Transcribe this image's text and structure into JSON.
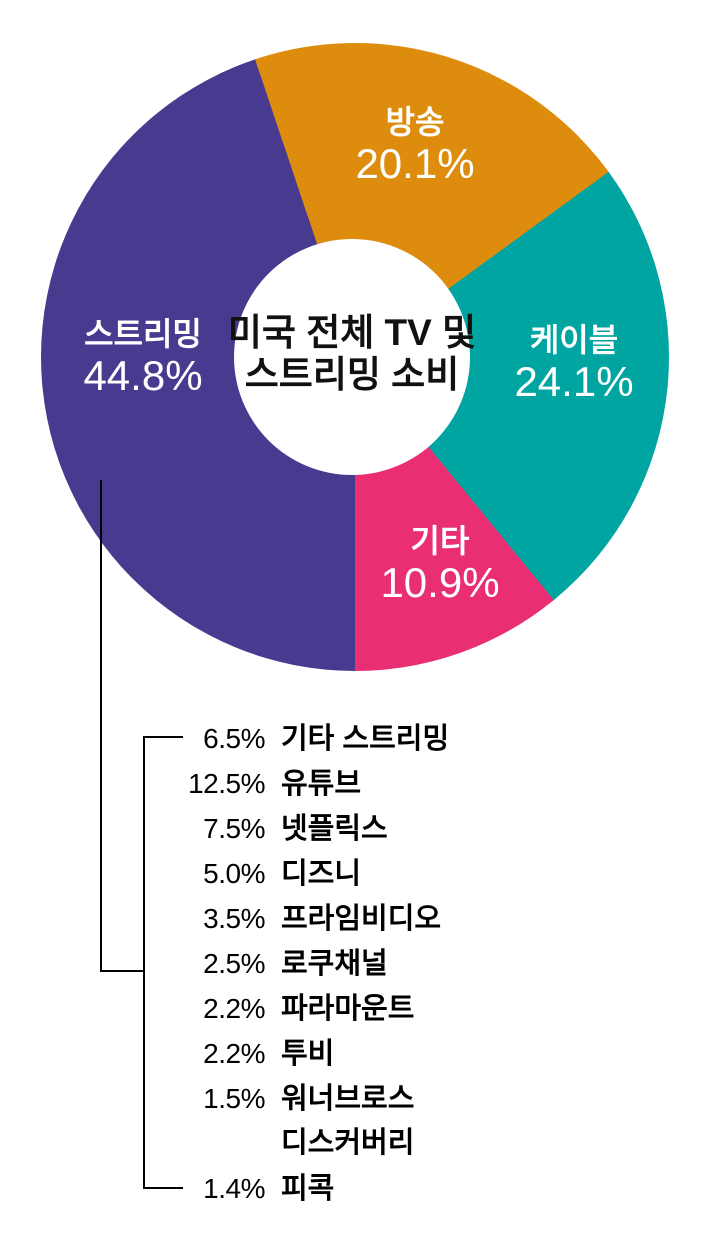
{
  "chart_data": {
    "type": "pie",
    "subtype": "donut",
    "title": "미국 전체 TV 및 스트리밍 소비",
    "title_lines": [
      "미국 전체 TV 및",
      "스트리밍 소비"
    ],
    "legend_position": "on-slices",
    "slices": [
      {
        "label": "스트리밍",
        "value": 44.8,
        "display": "44.8%",
        "color": "#483A8F"
      },
      {
        "label": "방송",
        "value": 20.1,
        "display": "20.1%",
        "color": "#DE8C0D"
      },
      {
        "label": "케이블",
        "value": 24.1,
        "display": "24.1%",
        "color": "#00A4A0"
      },
      {
        "label": "기타",
        "value": 10.9,
        "display": "10.9%",
        "color": "#EA2E74"
      }
    ],
    "breakdown": {
      "parent": "스트리밍",
      "rows": [
        {
          "pct": "6.5%",
          "name": "기타 스트리밍"
        },
        {
          "pct": "12.5%",
          "name": "유튜브"
        },
        {
          "pct": "7.5%",
          "name": "넷플릭스"
        },
        {
          "pct": "5.0%",
          "name": "디즈니"
        },
        {
          "pct": "3.5%",
          "name": "프라임비디오"
        },
        {
          "pct": "2.5%",
          "name": "로쿠채널"
        },
        {
          "pct": "2.2%",
          "name": "파라마운트"
        },
        {
          "pct": "2.2%",
          "name": "투비"
        },
        {
          "pct": "1.5%",
          "name": "워너브로스"
        },
        {
          "pct": "",
          "name": "디스커버리"
        },
        {
          "pct": "1.4%",
          "name": "피콕"
        }
      ]
    },
    "colors": {
      "streaming": "#483A8F",
      "broadcast": "#DE8C0D",
      "cable": "#00A4A0",
      "other": "#EA2E74",
      "line": "#000000",
      "background": "#FFFFFF"
    },
    "pie_start": "bottom-center, clockwise: 스트리밍(left), 방송(top), 케이블(right), 기타(bottom-right)"
  }
}
